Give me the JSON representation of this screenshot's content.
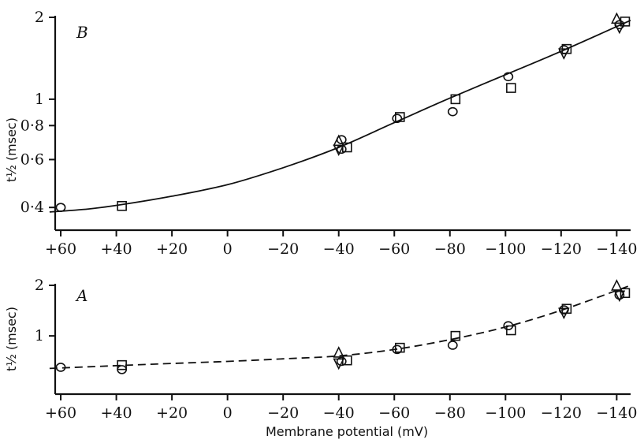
{
  "chart_data": [
    {
      "panel": "B",
      "type": "scatter",
      "scale": "log",
      "ylabel": "t½ (msec)",
      "xlim": [
        62,
        -145
      ],
      "ylim": [
        0.33,
        2.0
      ],
      "yticks": [
        {
          "value": 0.4,
          "label": "0·4"
        },
        {
          "value": 0.6,
          "label": "0·6"
        },
        {
          "value": 0.8,
          "label": "0·8"
        },
        {
          "value": 1,
          "label": "1"
        },
        {
          "value": 2,
          "label": "2"
        }
      ],
      "xticks": [
        {
          "value": 60,
          "label": "+60"
        },
        {
          "value": 40,
          "label": "+40"
        },
        {
          "value": 20,
          "label": "+20"
        },
        {
          "value": 0,
          "label": "0"
        },
        {
          "value": -20,
          "label": "−20"
        },
        {
          "value": -40,
          "label": "−40"
        },
        {
          "value": -60,
          "label": "−60"
        },
        {
          "value": -80,
          "label": "−80"
        },
        {
          "value": -100,
          "label": "−100"
        },
        {
          "value": -120,
          "label": "−120"
        },
        {
          "value": -140,
          "label": "−140"
        }
      ],
      "series": [
        {
          "marker": "circle",
          "points": [
            [
              60,
              0.4
            ],
            [
              -41,
              0.71
            ],
            [
              -41,
              0.655
            ],
            [
              -61,
              0.85
            ],
            [
              -81,
              0.9
            ],
            [
              -101,
              1.21
            ],
            [
              -121,
              1.52
            ],
            [
              -141,
              1.88
            ]
          ]
        },
        {
          "marker": "square",
          "points": [
            [
              38,
              0.405
            ],
            [
              -43,
              0.665
            ],
            [
              -62,
              0.86
            ],
            [
              -82,
              1.0
            ],
            [
              -102,
              1.1
            ],
            [
              -122,
              1.53
            ],
            [
              -143,
              1.93
            ]
          ]
        },
        {
          "marker": "triangle-up",
          "points": [
            [
              -40,
              0.7
            ],
            [
              -140,
              1.97
            ]
          ]
        },
        {
          "marker": "triangle-down",
          "points": [
            [
              -40,
              0.655
            ],
            [
              -121,
              1.48
            ],
            [
              -141,
              1.84
            ]
          ]
        }
      ],
      "curve": {
        "style": "solid",
        "x": [
          64,
          50,
          38,
          20,
          0,
          -20,
          -40,
          -60,
          -80,
          -100,
          -120,
          -145
        ],
        "y": [
          0.385,
          0.395,
          0.41,
          0.44,
          0.485,
          0.56,
          0.665,
          0.82,
          1.01,
          1.23,
          1.5,
          1.95
        ]
      }
    },
    {
      "panel": "A",
      "type": "scatter",
      "scale": "log",
      "ylabel": "t½ (msec)",
      "xlabel": "Membrane potential (mV)",
      "xlim": [
        62,
        -145
      ],
      "ylim": [
        0.45,
        2.0
      ],
      "yticks": [
        {
          "value": 1,
          "label": "1"
        },
        {
          "value": 2,
          "label": "2"
        }
      ],
      "xticks": [
        {
          "value": 60,
          "label": "+60"
        },
        {
          "value": 40,
          "label": "+40"
        },
        {
          "value": 20,
          "label": "+20"
        },
        {
          "value": 0,
          "label": "0"
        },
        {
          "value": -20,
          "label": "−20"
        },
        {
          "value": -40,
          "label": "−40"
        },
        {
          "value": -60,
          "label": "−60"
        },
        {
          "value": -80,
          "label": "−80"
        },
        {
          "value": -100,
          "label": "−100"
        },
        {
          "value": -120,
          "label": "−120"
        },
        {
          "value": -140,
          "label": "−140"
        }
      ],
      "series": [
        {
          "marker": "circle",
          "points": [
            [
              60,
              0.65
            ],
            [
              38,
              0.63
            ],
            [
              -41,
              0.705
            ],
            [
              -61,
              0.83
            ],
            [
              -81,
              0.88
            ],
            [
              -101,
              1.15
            ],
            [
              -121,
              1.43
            ],
            [
              -141,
              1.75
            ]
          ]
        },
        {
          "marker": "square",
          "points": [
            [
              38,
              0.67
            ],
            [
              -43,
              0.715
            ],
            [
              -62,
              0.85
            ],
            [
              -82,
              1.0
            ],
            [
              -102,
              1.08
            ],
            [
              -122,
              1.45
            ],
            [
              -143,
              1.8
            ]
          ]
        },
        {
          "marker": "triangle-up",
          "points": [
            [
              -40,
              0.79
            ],
            [
              -140,
              1.98
            ]
          ]
        },
        {
          "marker": "triangle-down",
          "points": [
            [
              -40,
              0.69
            ],
            [
              -121,
              1.38
            ],
            [
              -141,
              1.75
            ]
          ]
        }
      ],
      "curve": {
        "style": "dashed",
        "x": [
          64,
          40,
          20,
          0,
          -20,
          -40,
          -60,
          -80,
          -100,
          -120,
          -145
        ],
        "y": [
          0.64,
          0.665,
          0.685,
          0.705,
          0.73,
          0.76,
          0.83,
          0.95,
          1.13,
          1.42,
          2.0
        ]
      }
    }
  ]
}
